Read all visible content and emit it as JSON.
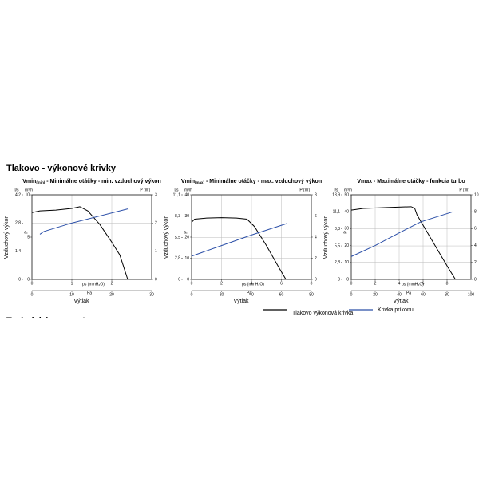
{
  "header": {
    "title": "Tlakovo - výkonové krivky",
    "next_section": "Technické parametre"
  },
  "legend": [
    {
      "name": "Tlakovo výkonová krivka",
      "color": "#000000"
    },
    {
      "name": "Krivka príkonu",
      "color": "#2b4fa8"
    }
  ],
  "chart_data": [
    {
      "type": "line",
      "title_main": "Vmin",
      "title_sub": "(min)",
      "title_rest": " - Minimálne otáčky - min. vzduchový výkon",
      "y_label": "Vzduchový výkon",
      "y_symbol": "P",
      "x_label": "Výtlak",
      "unit_ls": "l/s",
      "unit_m3h": "m³/h",
      "unit_w": "P (W)",
      "unit_mm": "ps (mmH₂O)",
      "unit_pa": "Pa",
      "xlim": [
        0,
        30
      ],
      "xticks": [
        0,
        10,
        20,
        30
      ],
      "xmm_lim": [
        0,
        3
      ],
      "xmm_ticks": [
        0,
        1,
        2
      ],
      "ylim": [
        0,
        10
      ],
      "yticks": [
        0,
        5,
        10
      ],
      "yls_lim": [
        0,
        4.2
      ],
      "yls_ticks": [
        0,
        {
          "value": 1.4,
          "label": "1,4"
        },
        {
          "value": 2.8,
          "label": "2,8"
        },
        {
          "value": 4.2,
          "label": "4,2"
        }
      ],
      "y2lim": [
        0,
        3
      ],
      "y2ticks": [
        0,
        1,
        2,
        3
      ],
      "grid": true,
      "series": [
        {
          "color": "#000000",
          "x": [
            0,
            2,
            6,
            10,
            12,
            14,
            17,
            20,
            22,
            24
          ],
          "values": [
            7.9,
            8.1,
            8.2,
            8.4,
            8.6,
            8.1,
            6.5,
            4.4,
            2.9,
            0
          ]
        },
        {
          "color": "#2b4fa8",
          "axis": "y2",
          "x": [
            2,
            3,
            10,
            24
          ],
          "values": [
            1.6,
            1.7,
            2.0,
            2.5
          ]
        }
      ]
    },
    {
      "type": "line",
      "title_main": "Vmin",
      "title_sub": "(max)",
      "title_rest": " - Minimálne otáčky - max. vzduchový výkon",
      "y_label": "Vzduchový výkon",
      "y_symbol": "P",
      "x_label": "Výtlak",
      "unit_ls": "l/s",
      "unit_m3h": "m³/h",
      "unit_w": "P (W)",
      "unit_mm": "ps (mmH₂O)",
      "unit_pa": "Pa",
      "xlim": [
        0,
        80
      ],
      "xticks": [
        0,
        20,
        40,
        60,
        80
      ],
      "xmm_lim": [
        0,
        8
      ],
      "xmm_ticks": [
        0,
        2,
        4,
        6,
        8
      ],
      "ylim": [
        0,
        40
      ],
      "yticks": [
        0,
        10,
        20,
        30,
        40
      ],
      "yls_lim": [
        0,
        11.1
      ],
      "yls_ticks": [
        0,
        {
          "value": 2.8,
          "label": "2,8"
        },
        {
          "value": 5.5,
          "label": "5,5"
        },
        {
          "value": 8.3,
          "label": "8,3"
        },
        {
          "value": 11.1,
          "label": "11,1"
        }
      ],
      "y2lim": [
        0,
        8
      ],
      "y2ticks": [
        0,
        2,
        4,
        6,
        8
      ],
      "grid": true,
      "series": [
        {
          "color": "#000000",
          "x": [
            0,
            2,
            10,
            20,
            30,
            37,
            42,
            50,
            58,
            63
          ],
          "values": [
            27,
            28.5,
            29,
            29.2,
            29,
            28.5,
            25,
            16,
            6,
            0
          ]
        },
        {
          "color": "#2b4fa8",
          "axis": "y2",
          "x": [
            0,
            20,
            40,
            64
          ],
          "values": [
            2.2,
            3.2,
            4.2,
            5.3
          ]
        }
      ]
    },
    {
      "type": "line",
      "title_main": "Vmax - Maximálne otáčky - funkcia turbo",
      "y_label": "Vzduchový výkon",
      "y_symbol": "P",
      "x_label": "Výtlak",
      "unit_ls": "l/s",
      "unit_m3h": "m³/h",
      "unit_w": "P (W)",
      "unit_mm": "ps (mmH₂O)",
      "unit_pa": "Pa",
      "xlim": [
        0,
        100
      ],
      "xticks": [
        0,
        20,
        40,
        60,
        80,
        100
      ],
      "xmm_lim": [
        0,
        10
      ],
      "xmm_ticks": [
        0,
        2,
        4,
        6,
        8
      ],
      "ylim": [
        0,
        50
      ],
      "yticks": [
        0,
        10,
        20,
        30,
        40,
        50
      ],
      "yls_lim": [
        0,
        13.9
      ],
      "yls_ticks": [
        0,
        {
          "value": 2.8,
          "label": "2,8"
        },
        {
          "value": 5.5,
          "label": "5,5"
        },
        {
          "value": 8.3,
          "label": "8,3"
        },
        {
          "value": 11.1,
          "label": "11,1"
        },
        {
          "value": 13.9,
          "label": "13,9"
        }
      ],
      "y2lim": [
        0,
        10
      ],
      "y2ticks": [
        0,
        2,
        4,
        6,
        8,
        10
      ],
      "grid": true,
      "series": [
        {
          "color": "#000000",
          "x": [
            0,
            10,
            30,
            50,
            53,
            55,
            60,
            70,
            80,
            87
          ],
          "values": [
            41,
            42,
            42.5,
            43,
            42,
            38,
            32,
            20,
            8,
            0
          ]
        },
        {
          "color": "#2b4fa8",
          "axis": "y2",
          "x": [
            0,
            20,
            40,
            58,
            85
          ],
          "values": [
            2.7,
            4.0,
            5.5,
            6.8,
            8.0
          ]
        }
      ]
    }
  ]
}
